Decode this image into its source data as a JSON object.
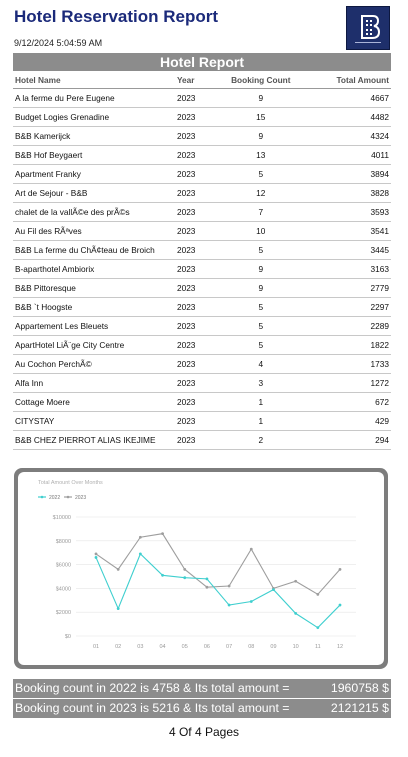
{
  "header": {
    "title": "Hotel Reservation Report",
    "datetime": "9/12/2024 5:04:59 AM",
    "logo_icon": "hotel-logo-icon",
    "logo_brand_color": "#1e2f6b"
  },
  "banner": {
    "title": "Hotel Report"
  },
  "table": {
    "columns": [
      "Hotel Name",
      "Year",
      "Booking Count",
      "Total Amount"
    ],
    "rows": [
      [
        "A la ferme du Pere Eugene",
        "2023",
        "9",
        "4667"
      ],
      [
        "Budget Logies Grenadine",
        "2023",
        "15",
        "4482"
      ],
      [
        "B&B Kamerijck",
        "2023",
        "9",
        "4324"
      ],
      [
        "B&B Hof Beygaert",
        "2023",
        "13",
        "4011"
      ],
      [
        "Apartment Franky",
        "2023",
        "5",
        "3894"
      ],
      [
        "Art de Sejour - B&B",
        "2023",
        "12",
        "3828"
      ],
      [
        "chalet de la vallÃ©e des prÃ©s",
        "2023",
        "7",
        "3593"
      ],
      [
        "Au Fil des RÃªves",
        "2023",
        "10",
        "3541"
      ],
      [
        "B&B La ferme du ChÃ¢teau de Broich",
        "2023",
        "5",
        "3445"
      ],
      [
        "B-aparthotel Ambiorix",
        "2023",
        "9",
        "3163"
      ],
      [
        "B&B Pittoresque",
        "2023",
        "9",
        "2779"
      ],
      [
        "B&B `t Hoogste",
        "2023",
        "5",
        "2297"
      ],
      [
        "Appartement Les Bleuets",
        "2023",
        "5",
        "2289"
      ],
      [
        "ApartHotel LiÃ¨ge City Centre",
        "2023",
        "5",
        "1822"
      ],
      [
        "Au Cochon PerchÃ©",
        "2023",
        "4",
        "1733"
      ],
      [
        "Alfa Inn",
        "2023",
        "3",
        "1272"
      ],
      [
        "Cottage Moere",
        "2023",
        "1",
        "672"
      ],
      [
        "CITYSTAY",
        "2023",
        "1",
        "429"
      ],
      [
        "B&B CHEZ PIERROT ALIAS IKEJIME",
        "2023",
        "2",
        "294"
      ]
    ]
  },
  "chart_data": {
    "type": "line",
    "title": "Total Amount Over Months",
    "categories": [
      "01",
      "02",
      "03",
      "04",
      "05",
      "06",
      "07",
      "08",
      "09",
      "10",
      "11",
      "12"
    ],
    "series": [
      {
        "name": "2022",
        "color": "#3fcfcf",
        "values": [
          6600,
          2300,
          6900,
          5100,
          4900,
          4800,
          2600,
          2900,
          3900,
          1900,
          700,
          2600
        ]
      },
      {
        "name": "2023",
        "color": "#9e9e9e",
        "values": [
          6900,
          5600,
          8300,
          8600,
          5600,
          4100,
          4200,
          7300,
          4000,
          4600,
          3500,
          5600
        ]
      }
    ],
    "yticks": [
      "$0",
      "$2000",
      "$4000",
      "$6000",
      "$8000",
      "$10000"
    ],
    "ylim": [
      0,
      10000
    ],
    "legend_position": "top-left",
    "grid": true
  },
  "summary": {
    "line1": {
      "text": "Booking count in 2022 is 4758 & Its total amount  =",
      "amount": "1960758 $"
    },
    "line2": {
      "text": "Booking count in 2023 is 5216 & Its total amount  =",
      "amount": "2121215 $"
    }
  },
  "footer": {
    "pages": "4 Of 4 Pages"
  }
}
